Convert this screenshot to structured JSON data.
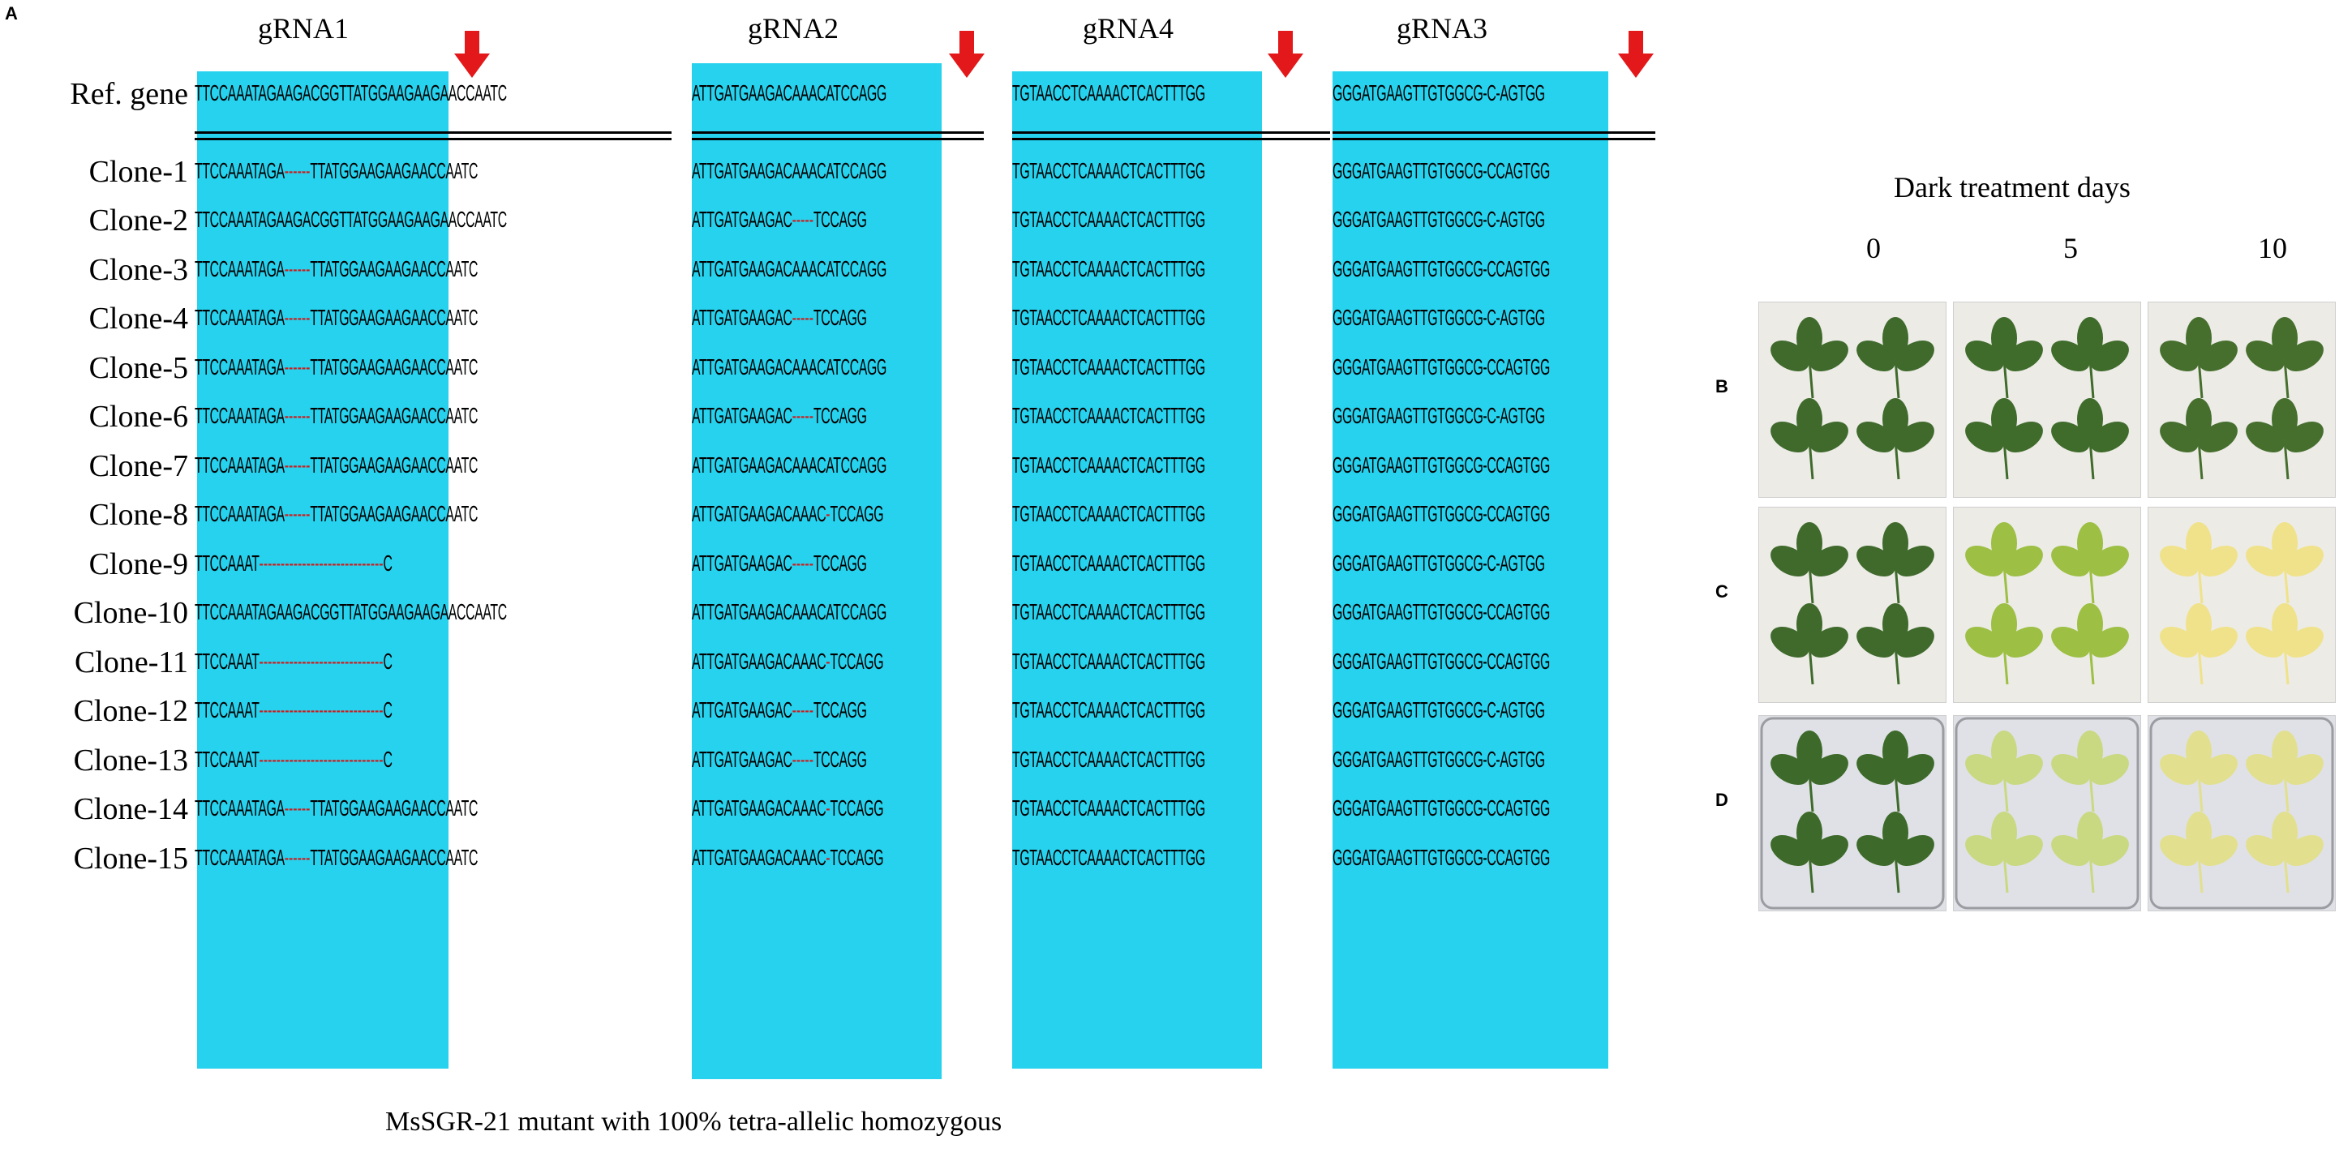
{
  "panel_a": {
    "letter": "A",
    "grnas": [
      "gRNA1",
      "gRNA2",
      "gRNA4",
      "gRNA3"
    ],
    "rows": [
      {
        "label": "Ref. gene",
        "s1": [
          "TTCCAAATAGAAGACGGTTATGGAAGAAGAACCAATC"
        ],
        "s2": [
          "ATTGATGAAGACAAACATCCAGG"
        ],
        "s3": [
          "TGTAACCTCAAAACTCACTTTGG"
        ],
        "s4": [
          "GGGATGAAGTTGTGGCG-C-AGTGG"
        ]
      },
      {
        "label": "Clone-1",
        "s1": [
          "TTCCAAATAGA",
          "------",
          "TTATGGAAGAAGAACCAATC"
        ],
        "s2": [
          "ATTGATGAAGACAAACATCCAGG"
        ],
        "s3": [
          "TGTAACCTCAAAACTCACTTTGG"
        ],
        "s4": [
          "GGGATGAAGTTGTGGCG-CCAGTGG"
        ]
      },
      {
        "label": "Clone-2",
        "s1": [
          "TTCCAAATAGAAGACGGTTATGGAAGAAGAACCAATC"
        ],
        "s2": [
          "ATTGATGAAGAC",
          "-----",
          "TCCAGG"
        ],
        "s3": [
          "TGTAACCTCAAAACTCACTTTGG"
        ],
        "s4": [
          "GGGATGAAGTTGTGGCG-C-AGTGG"
        ]
      },
      {
        "label": "Clone-3",
        "s1": [
          "TTCCAAATAGA",
          "------",
          "TTATGGAAGAAGAACCAATC"
        ],
        "s2": [
          "ATTGATGAAGACAAACATCCAGG"
        ],
        "s3": [
          "TGTAACCTCAAAACTCACTTTGG"
        ],
        "s4": [
          "GGGATGAAGTTGTGGCG-CCAGTGG"
        ]
      },
      {
        "label": "Clone-4",
        "s1": [
          "TTCCAAATAGA",
          "------",
          "TTATGGAAGAAGAACCAATC"
        ],
        "s2": [
          "ATTGATGAAGAC",
          "-----",
          "TCCAGG"
        ],
        "s3": [
          "TGTAACCTCAAAACTCACTTTGG"
        ],
        "s4": [
          "GGGATGAAGTTGTGGCG-C-AGTGG"
        ]
      },
      {
        "label": "Clone-5",
        "s1": [
          "TTCCAAATAGA",
          "------",
          "TTATGGAAGAAGAACCAATC"
        ],
        "s2": [
          "ATTGATGAAGACAAACATCCAGG"
        ],
        "s3": [
          "TGTAACCTCAAAACTCACTTTGG"
        ],
        "s4": [
          "GGGATGAAGTTGTGGCG-CCAGTGG"
        ]
      },
      {
        "label": "Clone-6",
        "s1": [
          "TTCCAAATAGA",
          "------",
          "TTATGGAAGAAGAACCAATC"
        ],
        "s2": [
          "ATTGATGAAGAC",
          "-----",
          "TCCAGG"
        ],
        "s3": [
          "TGTAACCTCAAAACTCACTTTGG"
        ],
        "s4": [
          "GGGATGAAGTTGTGGCG-C-AGTGG"
        ]
      },
      {
        "label": "Clone-7",
        "s1": [
          "TTCCAAATAGA",
          "------",
          "TTATGGAAGAAGAACCAATC"
        ],
        "s2": [
          "ATTGATGAAGACAAACATCCAGG"
        ],
        "s3": [
          "TGTAACCTCAAAACTCACTTTGG"
        ],
        "s4": [
          "GGGATGAAGTTGTGGCG-CCAGTGG"
        ]
      },
      {
        "label": "Clone-8",
        "s1": [
          "TTCCAAATAGA",
          "------",
          "TTATGGAAGAAGAACCAATC"
        ],
        "s2": [
          "ATTGATGAAGACAAAC",
          "-",
          "TCCAGG"
        ],
        "s3": [
          "TGTAACCTCAAAACTCACTTTGG"
        ],
        "s4": [
          "GGGATGAAGTTGTGGCG-CCAGTGG"
        ]
      },
      {
        "label": "Clone-9",
        "s1": [
          "TTCCAAAT",
          "-----------------------------",
          "C"
        ],
        "s2": [
          "ATTGATGAAGAC",
          "-----",
          "TCCAGG"
        ],
        "s3": [
          "TGTAACCTCAAAACTCACTTTGG"
        ],
        "s4": [
          "GGGATGAAGTTGTGGCG-C-AGTGG"
        ]
      },
      {
        "label": "Clone-10",
        "s1": [
          "TTCCAAATAGAAGACGGTTATGGAAGAAGAACCAATC"
        ],
        "s2": [
          "ATTGATGAAGACAAACATCCAGG"
        ],
        "s3": [
          "TGTAACCTCAAAACTCACTTTGG"
        ],
        "s4": [
          "GGGATGAAGTTGTGGCG-CCAGTGG"
        ]
      },
      {
        "label": "Clone-11",
        "s1": [
          "TTCCAAAT",
          "-----------------------------",
          "C"
        ],
        "s2": [
          "ATTGATGAAGACAAAC",
          "-",
          "TCCAGG"
        ],
        "s3": [
          "TGTAACCTCAAAACTCACTTTGG"
        ],
        "s4": [
          "GGGATGAAGTTGTGGCG-CCAGTGG"
        ]
      },
      {
        "label": "Clone-12",
        "s1": [
          "TTCCAAAT",
          "-----------------------------",
          "C"
        ],
        "s2": [
          "ATTGATGAAGAC",
          "-----",
          "TCCAGG"
        ],
        "s3": [
          "TGTAACCTCAAAACTCACTTTGG"
        ],
        "s4": [
          "GGGATGAAGTTGTGGCG-C-AGTGG"
        ]
      },
      {
        "label": "Clone-13",
        "s1": [
          "TTCCAAAT",
          "-----------------------------",
          "C"
        ],
        "s2": [
          "ATTGATGAAGAC",
          "-----",
          "TCCAGG"
        ],
        "s3": [
          "TGTAACCTCAAAACTCACTTTGG"
        ],
        "s4": [
          "GGGATGAAGTTGTGGCG-C-AGTGG"
        ]
      },
      {
        "label": "Clone-14",
        "s1": [
          "TTCCAAATAGA",
          "------",
          "TTATGGAAGAAGAACCAATC"
        ],
        "s2": [
          "ATTGATGAAGACAAAC",
          "-",
          "TCCAGG"
        ],
        "s3": [
          "TGTAACCTCAAAACTCACTTTGG"
        ],
        "s4": [
          "GGGATGAAGTTGTGGCG-CCAGTGG"
        ]
      },
      {
        "label": "Clone-15",
        "s1": [
          "TTCCAAATAGA",
          "------",
          "TTATGGAAGAAGAACCAATC"
        ],
        "s2": [
          "ATTGATGAAGACAAAC",
          "-",
          "TCCAGG"
        ],
        "s3": [
          "TGTAACCTCAAAACTCACTTTGG"
        ],
        "s4": [
          "GGGATGAAGTTGTGGCG-CCAGTGG"
        ]
      }
    ],
    "caption": "MsSGR-21 mutant  with  100% tetra-allelic  homozygous"
  },
  "panel_right": {
    "title": "Dark treatment  days",
    "days": [
      "0",
      "5",
      "10"
    ],
    "rows": [
      {
        "letter": "B",
        "leaf_colors": [
          "#3f6a2c",
          "#3f6b2b",
          "#466f2e"
        ]
      },
      {
        "letter": "C",
        "leaf_colors": [
          "#3f6a2c",
          "#9cbf44",
          "#f0e28a"
        ]
      },
      {
        "letter": "D",
        "leaf_colors": [
          "#3d6a2a",
          "#c8d982",
          "#e2e08e"
        ]
      }
    ]
  },
  "colors": {
    "highlight": "#26d2ee",
    "arrow": "#e3181a",
    "deletion": "#d11a1a"
  }
}
